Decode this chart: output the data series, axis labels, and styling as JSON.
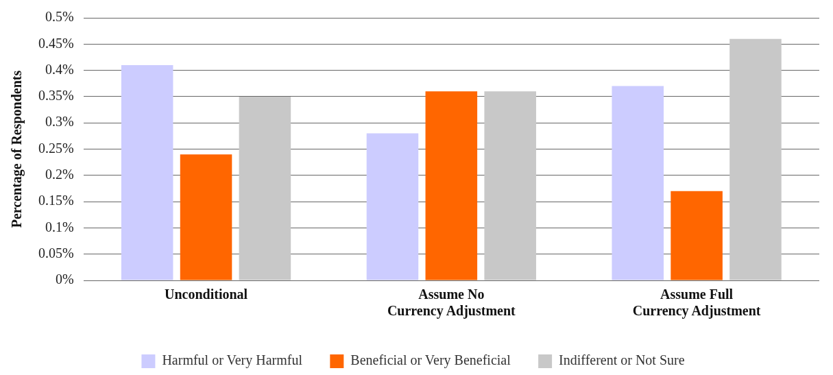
{
  "chart_data": {
    "type": "bar",
    "ylabel": "Percentage of Respondents",
    "categories": [
      "Unconditional",
      "Assume No\nCurrency Adjustment",
      "Assume Full\nCurrency Adjustment"
    ],
    "series": [
      {
        "name": "Harmful or Very Harmful",
        "color": "#ccccff",
        "values": [
          0.41,
          0.28,
          0.37
        ]
      },
      {
        "name": "Beneficial or Very Beneficial",
        "color": "#ff6600",
        "values": [
          0.24,
          0.36,
          0.17
        ]
      },
      {
        "name": "Indifferent or Not Sure",
        "color": "#c8c8c8",
        "values": [
          0.35,
          0.36,
          0.46
        ]
      }
    ],
    "ylim": [
      0,
      0.5
    ],
    "yticks": [
      {
        "value": 0,
        "label": "0%"
      },
      {
        "value": 0.05,
        "label": "0.05%"
      },
      {
        "value": 0.1,
        "label": "0.1%"
      },
      {
        "value": 0.15,
        "label": "0.15%"
      },
      {
        "value": 0.2,
        "label": "0.2%"
      },
      {
        "value": 0.25,
        "label": "0.25%"
      },
      {
        "value": 0.3,
        "label": "0.3%"
      },
      {
        "value": 0.35,
        "label": "0.35%"
      },
      {
        "value": 0.4,
        "label": "0.4%"
      },
      {
        "value": 0.45,
        "label": "0.45%"
      },
      {
        "value": 0.5,
        "label": "0.5%"
      }
    ],
    "grid": "y",
    "legend": "bottom"
  }
}
